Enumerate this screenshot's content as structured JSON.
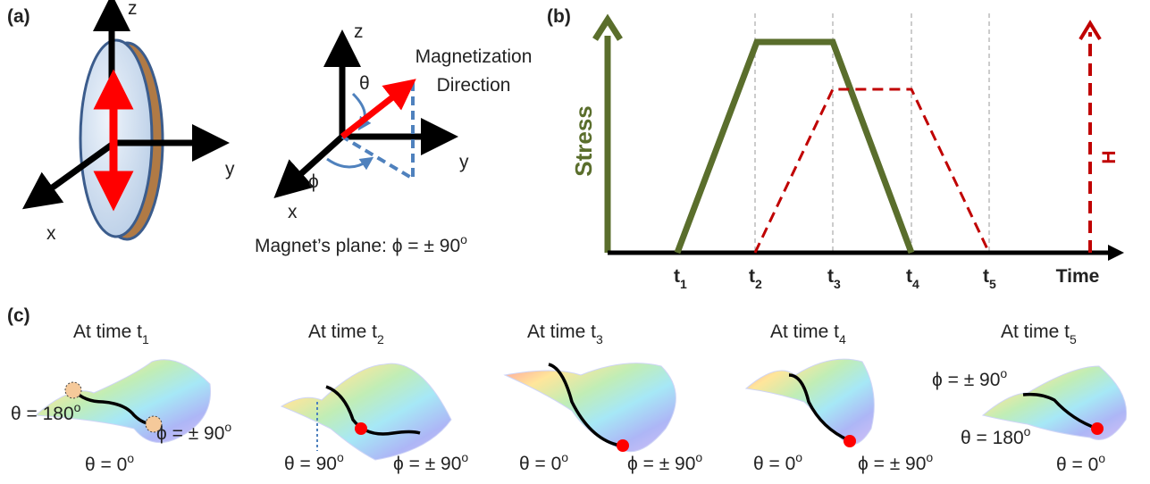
{
  "panel_a": {
    "label": "(a)",
    "disk_axes": {
      "z": "z",
      "y": "y",
      "x": "x"
    },
    "sphere_axes": {
      "z": "z",
      "y": "y",
      "x": "x",
      "theta": "θ",
      "phi": "ϕ",
      "direction": [
        "Magnetization",
        "Direction"
      ]
    },
    "caption": {
      "text": "Magnet’s plane:  ϕ = ± 90",
      "sup": "o"
    }
  },
  "panel_b": {
    "label": "(b)",
    "y_label": "Stress",
    "h_label": "H",
    "x_label": "Time",
    "ticks": [
      {
        "base": "t",
        "sub": "1"
      },
      {
        "base": "t",
        "sub": "2"
      },
      {
        "base": "t",
        "sub": "3"
      },
      {
        "base": "t",
        "sub": "4"
      },
      {
        "base": "t",
        "sub": "5"
      }
    ]
  },
  "panel_c": {
    "label": "(c)",
    "panels": [
      {
        "title": {
          "text": "At time t",
          "sub": "1"
        },
        "labels": [
          {
            "text": "θ = 180",
            "sup": "o"
          },
          {
            "text": "ϕ = ± 90",
            "sup": "o"
          },
          {
            "text": "θ = 0",
            "sup": "o"
          }
        ]
      },
      {
        "title": {
          "text": "At time t",
          "sub": "2"
        },
        "labels": [
          {
            "text": "θ = 90",
            "sup": "o"
          },
          {
            "text": "ϕ = ± 90",
            "sup": "o"
          }
        ]
      },
      {
        "title": {
          "text": "At time t",
          "sub": "3"
        },
        "labels": [
          {
            "text": "θ = 0",
            "sup": "o"
          },
          {
            "text": "ϕ = ± 90",
            "sup": "o"
          }
        ]
      },
      {
        "title": {
          "text": "At time t",
          "sub": "4"
        },
        "labels": [
          {
            "text": "θ = 0",
            "sup": "o"
          },
          {
            "text": "ϕ = ± 90",
            "sup": "o"
          }
        ]
      },
      {
        "title": {
          "text": "At time t",
          "sub": "5"
        },
        "labels": [
          {
            "text": "ϕ = ± 90",
            "sup": "o"
          },
          {
            "text": "θ = 180",
            "sup": "o"
          },
          {
            "text": "θ = 0",
            "sup": "o"
          }
        ]
      }
    ]
  }
}
